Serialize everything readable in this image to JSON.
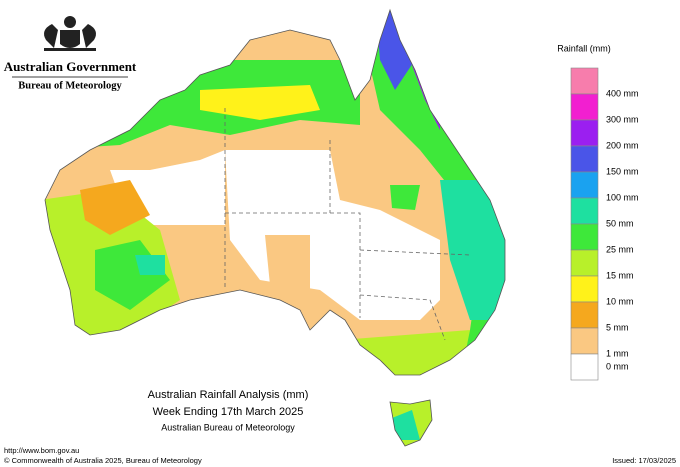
{
  "header": {
    "government": "Australian Government",
    "agency": "Bureau of Meteorology"
  },
  "legend": {
    "title": "Rainfall (mm)",
    "items": [
      {
        "label": "400 mm",
        "color": "#f77dac"
      },
      {
        "label": "300 mm",
        "color": "#f21fd0"
      },
      {
        "label": "200 mm",
        "color": "#9b1ff0"
      },
      {
        "label": "150 mm",
        "color": "#4a55e8"
      },
      {
        "label": "100 mm",
        "color": "#1aa2f0"
      },
      {
        "label": "50 mm",
        "color": "#1ee0a0"
      },
      {
        "label": "25 mm",
        "color": "#3ee83a"
      },
      {
        "label": "15 mm",
        "color": "#b8f02a"
      },
      {
        "label": "10 mm",
        "color": "#fff21a"
      },
      {
        "label": "5 mm",
        "color": "#f5a81e"
      },
      {
        "label": "1 mm",
        "color": "#fac882"
      },
      {
        "label": "0 mm",
        "color": "#ffffff"
      }
    ]
  },
  "map_title": {
    "line1": "Australian Rainfall Analysis (mm)",
    "line2": "Week Ending 17th March 2025",
    "line3": "Australian Bureau of Meteorology"
  },
  "footer": {
    "url": "http://www.bom.gov.au",
    "copyright": "© Commonwealth of Australia 2025, Bureau of Meteorology",
    "issued": "Issued: 17/03/2025"
  }
}
